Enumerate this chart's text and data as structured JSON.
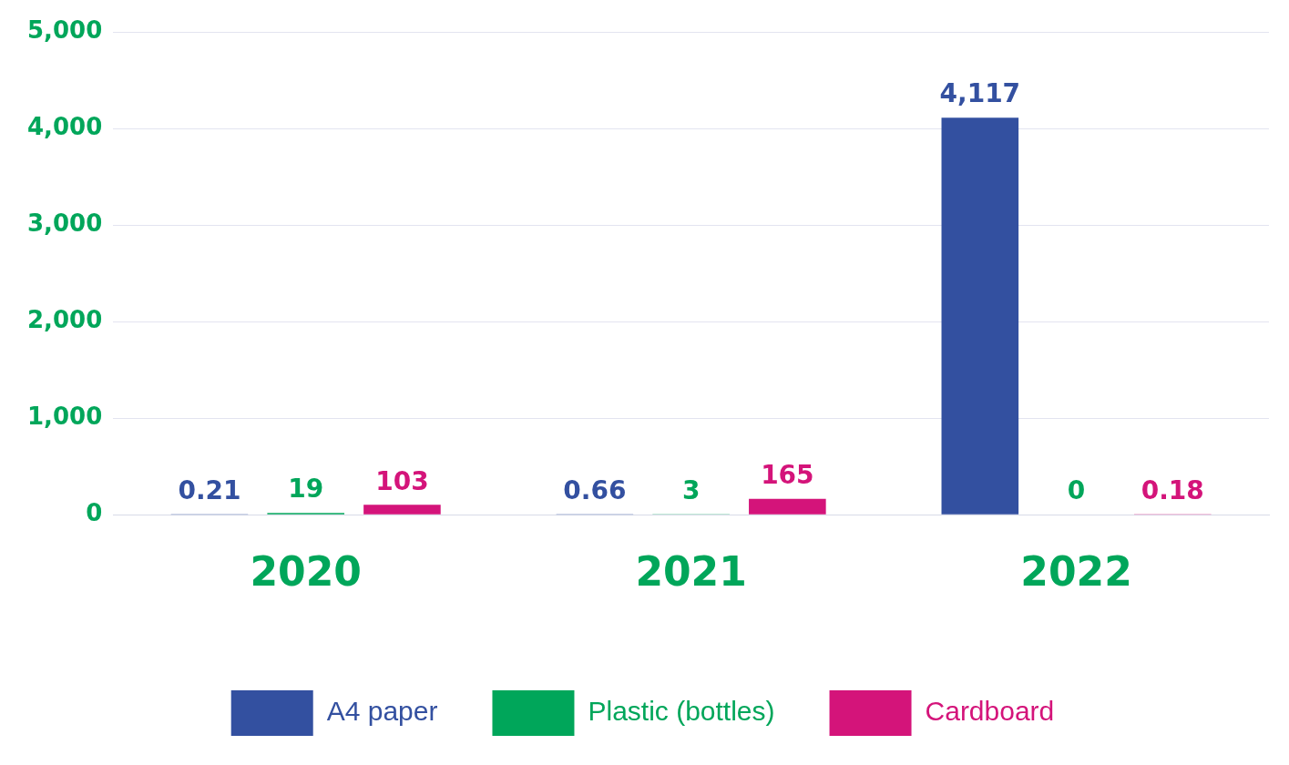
{
  "chart_data": {
    "type": "bar",
    "categories": [
      "2020",
      "2021",
      "2022"
    ],
    "series": [
      {
        "name": "A4 paper",
        "color": "#3350a0",
        "values": [
          0.21,
          0.66,
          4117
        ],
        "value_labels": [
          "0.21",
          "0.66",
          "4,117"
        ]
      },
      {
        "name": "Plastic (bottles)",
        "color": "#00a65a",
        "values": [
          19,
          3,
          0
        ],
        "value_labels": [
          "19",
          "3",
          "0"
        ]
      },
      {
        "name": "Cardboard",
        "color": "#d4147a",
        "values": [
          103,
          165,
          0.18
        ],
        "value_labels": [
          "103",
          "165",
          "0.18"
        ]
      }
    ],
    "ylim": [
      0,
      5000
    ],
    "yticks": [
      {
        "value": 0,
        "label": "0"
      },
      {
        "value": 1000,
        "label": "1,000"
      },
      {
        "value": 2000,
        "label": "2,000"
      },
      {
        "value": 3000,
        "label": "3,000"
      },
      {
        "value": 4000,
        "label": "4,000"
      },
      {
        "value": 5000,
        "label": "5,000"
      }
    ],
    "grid": "y",
    "legend": "bottom"
  }
}
